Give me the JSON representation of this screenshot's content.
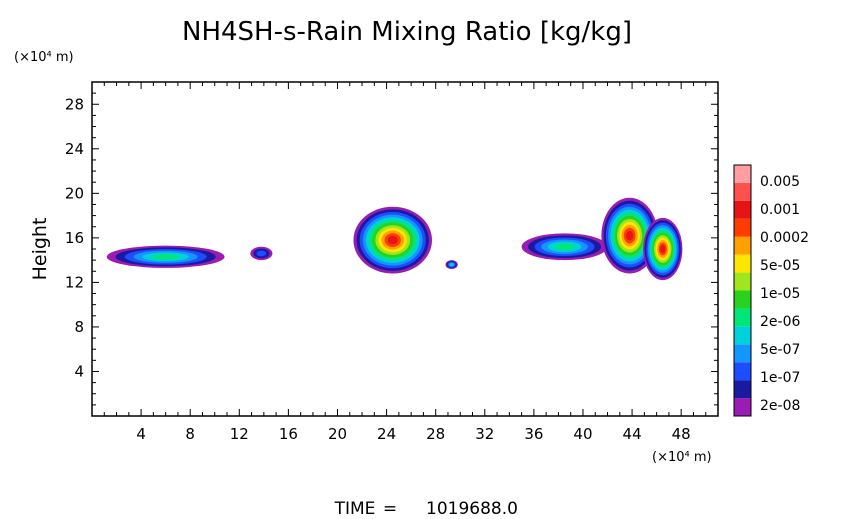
{
  "chart_data": {
    "type": "heatmap",
    "title": "NH4SH-s-Rain Mixing Ratio [kg/kg]",
    "ylabel": "Height",
    "xlabel": "",
    "y_unit": "(×10⁴ m)",
    "x_unit": "(×10⁴ m)",
    "xlim": [
      0,
      51
    ],
    "ylim": [
      0,
      30
    ],
    "x_ticks": [
      4,
      8,
      12,
      16,
      20,
      24,
      28,
      32,
      36,
      40,
      44,
      48
    ],
    "y_ticks": [
      4,
      8,
      12,
      16,
      20,
      24,
      28
    ],
    "colorbar": {
      "labels": [
        "0.005",
        "0.001",
        "0.0002",
        "5e-05",
        "1e-05",
        "2e-06",
        "5e-07",
        "1e-07",
        "2e-08"
      ],
      "colors": [
        "#9a1cb4",
        "#1a1aa0",
        "#1e4cff",
        "#1496ff",
        "#00d2dc",
        "#00e678",
        "#28d21e",
        "#a0e61e",
        "#ffe600",
        "#ffa000",
        "#ff3c00",
        "#e61414",
        "#ff5050",
        "#ff9ea0"
      ]
    },
    "clouds": [
      {
        "x": 6.0,
        "y": 14.3,
        "rx": 4.8,
        "ry": 1.0,
        "level": 6
      },
      {
        "x": 13.8,
        "y": 14.6,
        "rx": 0.9,
        "ry": 0.6,
        "level": 3
      },
      {
        "x": 24.5,
        "y": 15.8,
        "rx": 3.2,
        "ry": 3.0,
        "level": 12
      },
      {
        "x": 29.3,
        "y": 13.6,
        "rx": 0.5,
        "ry": 0.4,
        "level": 5
      },
      {
        "x": 38.5,
        "y": 15.2,
        "rx": 3.5,
        "ry": 1.2,
        "level": 6
      },
      {
        "x": 43.8,
        "y": 16.2,
        "rx": 2.3,
        "ry": 3.4,
        "level": 12
      },
      {
        "x": 46.5,
        "y": 15.0,
        "rx": 1.6,
        "ry": 2.8,
        "level": 12
      }
    ],
    "footer": {
      "label": "TIME",
      "value": "1019688.0"
    }
  }
}
